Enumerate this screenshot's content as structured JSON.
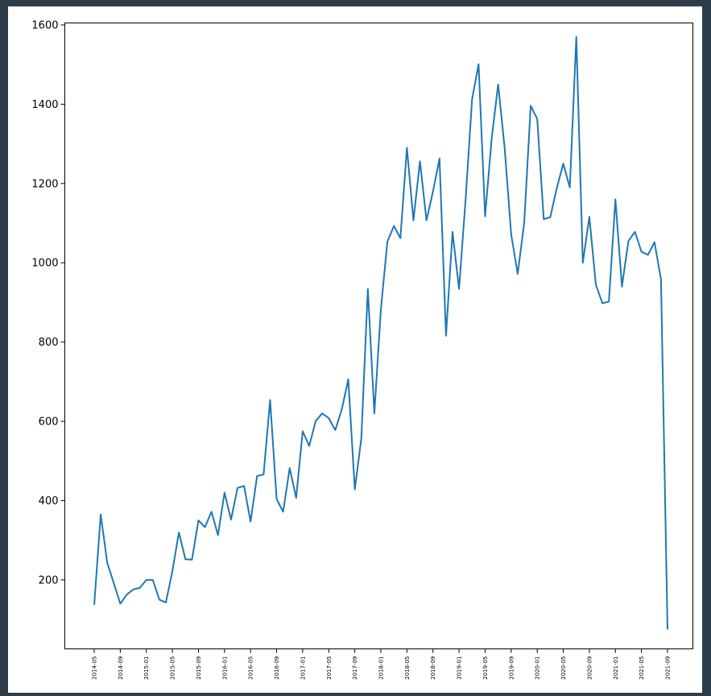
{
  "chart_data": {
    "type": "line",
    "title": "",
    "xlabel": "",
    "ylabel": "",
    "ylim": [
      26,
      1605
    ],
    "yticks": [
      200,
      400,
      600,
      800,
      1000,
      1200,
      1400,
      1600
    ],
    "xtick_labels": [
      "2014-05",
      "2014-09",
      "2015-01",
      "2015-05",
      "2015-09",
      "2016-01",
      "2016-05",
      "2016-09",
      "2017-01",
      "2017-05",
      "2017-09",
      "2018-01",
      "2018-05",
      "2018-09",
      "2019-01",
      "2019-05",
      "2019-09",
      "2020-01",
      "2020-05",
      "2020-09",
      "2021-01",
      "2021-05",
      "2021-09"
    ],
    "x": [
      "2014-05",
      "2014-06",
      "2014-07",
      "2014-08",
      "2014-09",
      "2014-10",
      "2014-11",
      "2014-12",
      "2015-01",
      "2015-02",
      "2015-03",
      "2015-04",
      "2015-05",
      "2015-06",
      "2015-07",
      "2015-08",
      "2015-09",
      "2015-10",
      "2015-11",
      "2015-12",
      "2016-01",
      "2016-02",
      "2016-03",
      "2016-04",
      "2016-05",
      "2016-06",
      "2016-07",
      "2016-08",
      "2016-09",
      "2016-10",
      "2016-11",
      "2016-12",
      "2017-01",
      "2017-02",
      "2017-03",
      "2017-04",
      "2017-05",
      "2017-06",
      "2017-07",
      "2017-08",
      "2017-09",
      "2017-10",
      "2017-11",
      "2017-12",
      "2018-01",
      "2018-02",
      "2018-03",
      "2018-04",
      "2018-05",
      "2018-06",
      "2018-07",
      "2018-08",
      "2018-09",
      "2018-10",
      "2018-11",
      "2018-12",
      "2019-01",
      "2019-02",
      "2019-03",
      "2019-04",
      "2019-05",
      "2019-06",
      "2019-07",
      "2019-08",
      "2019-09",
      "2019-10",
      "2019-11",
      "2019-12",
      "2020-01",
      "2020-02",
      "2020-03",
      "2020-04",
      "2020-05",
      "2020-06",
      "2020-07",
      "2020-08",
      "2020-09",
      "2020-10",
      "2020-11",
      "2020-12",
      "2021-01",
      "2021-02",
      "2021-03",
      "2021-04",
      "2021-05",
      "2021-06",
      "2021-07",
      "2021-08",
      "2021-09"
    ],
    "series": [
      {
        "color": "#1f77b4",
        "values": [
          137,
          365,
          243,
          192,
          140,
          163,
          176,
          180,
          200,
          200,
          150,
          143,
          222,
          320,
          252,
          251,
          350,
          333,
          372,
          313,
          420,
          352,
          432,
          437,
          347,
          462,
          466,
          654,
          404,
          372,
          482,
          407,
          575,
          538,
          601,
          620,
          608,
          578,
          630,
          706,
          428,
          557,
          934,
          620,
          882,
          1053,
          1093,
          1062,
          1290,
          1107,
          1256,
          1107,
          1180,
          1263,
          816,
          1078,
          934,
          1158,
          1412,
          1501,
          1117,
          1312,
          1450,
          1290,
          1072,
          972,
          1100,
          1396,
          1363,
          1110,
          1115,
          1188,
          1250,
          1190,
          1570,
          1000,
          1116,
          945,
          898,
          902,
          1160,
          940,
          1055,
          1078,
          1028,
          1020,
          1052,
          958,
          75
        ]
      }
    ]
  }
}
